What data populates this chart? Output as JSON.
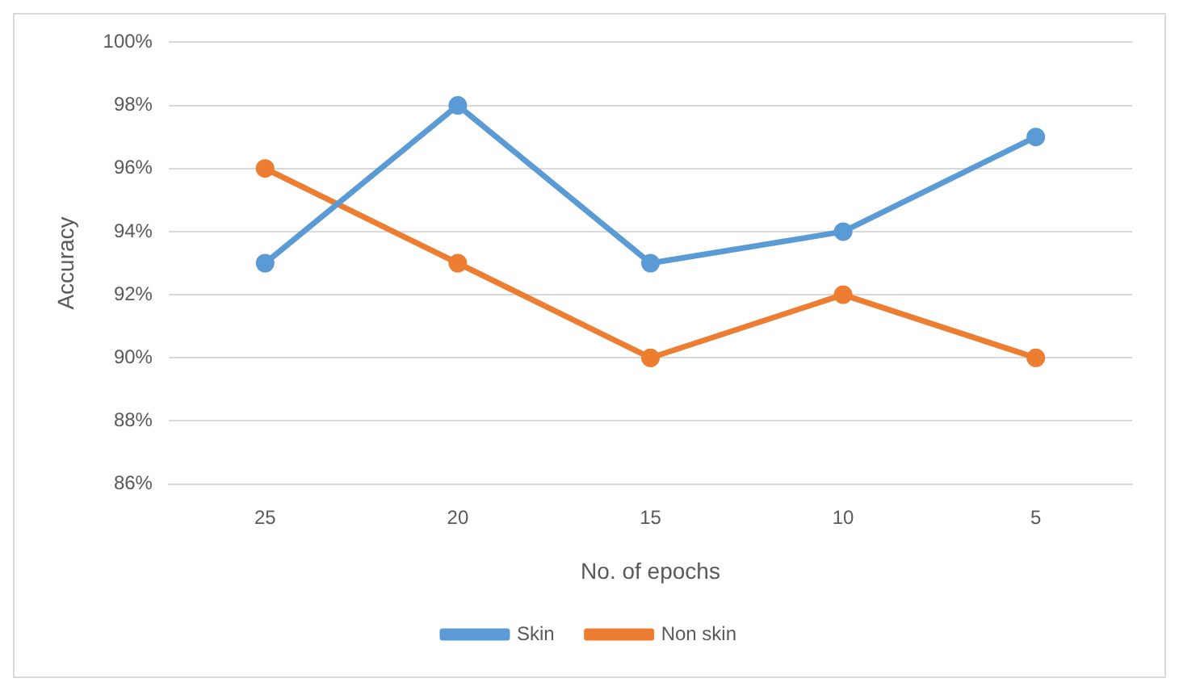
{
  "chart_data": {
    "type": "line",
    "xlabel": "No. of epochs",
    "ylabel": "Accuracy",
    "categories": [
      "25",
      "20",
      "15",
      "10",
      "5"
    ],
    "series": [
      {
        "name": "Skin",
        "color": "#5b9bd5",
        "values": [
          93,
          98,
          93,
          94,
          97
        ]
      },
      {
        "name": "Non skin",
        "color": "#ed7d31",
        "values": [
          96,
          93,
          90,
          92,
          90
        ]
      }
    ],
    "ylim": [
      86,
      100
    ],
    "yticks": [
      {
        "value": 86,
        "label": "86%"
      },
      {
        "value": 88,
        "label": "88%"
      },
      {
        "value": 90,
        "label": "90%"
      },
      {
        "value": 92,
        "label": "92%"
      },
      {
        "value": 94,
        "label": "94%"
      },
      {
        "value": 96,
        "label": "96%"
      },
      {
        "value": 98,
        "label": "98%"
      },
      {
        "value": 100,
        "label": "100%"
      }
    ],
    "grid": "y",
    "legend": "bottom",
    "marker": "circle",
    "line_style": "solid"
  }
}
